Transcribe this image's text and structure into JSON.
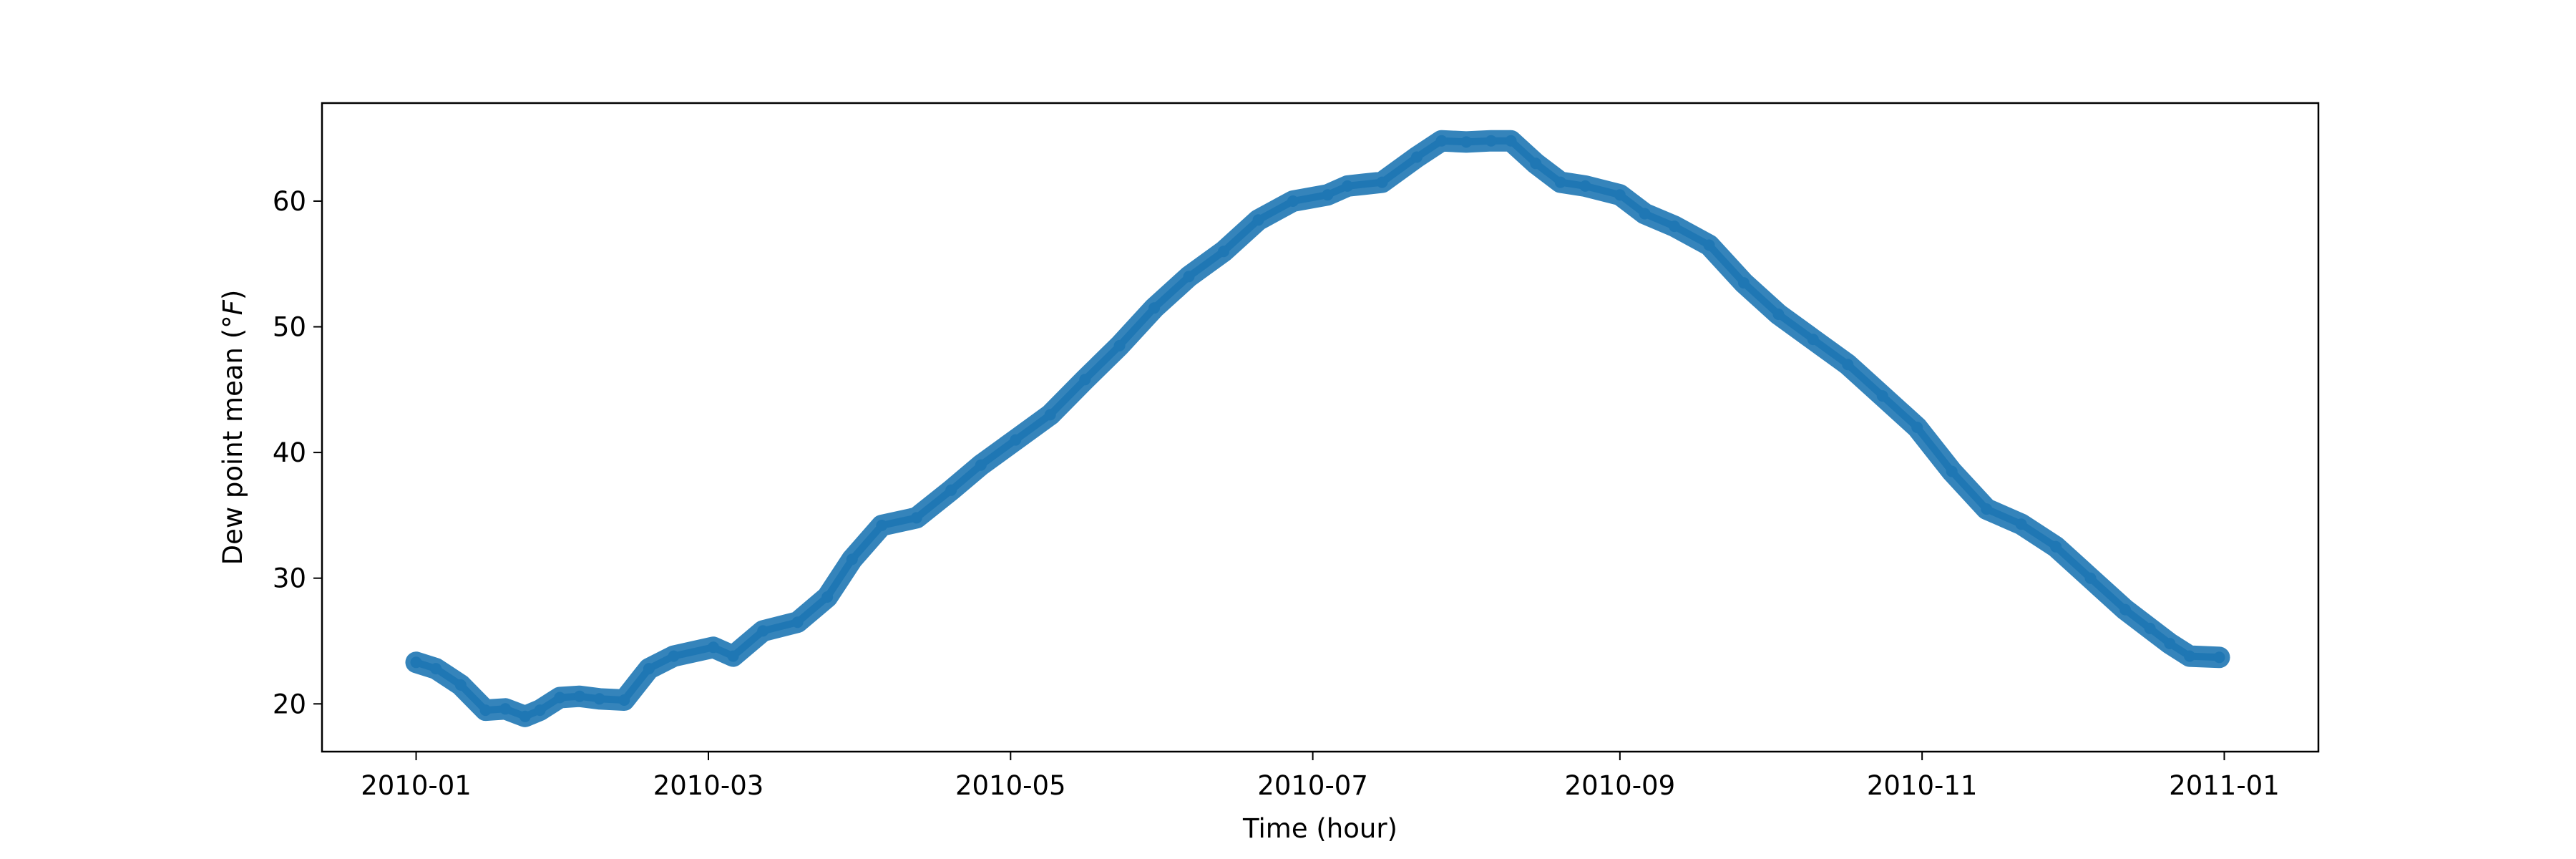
{
  "chart_data": {
    "type": "line",
    "title": "",
    "xlabel": "Time (hour)",
    "ylabel_text": "Dew point mean (",
    "ylabel_unit": "°F",
    "ylabel_close": ")",
    "x_axis_type": "date",
    "xlim": [
      "2009-12-13",
      "2011-01-20"
    ],
    "ylim": [
      16.2,
      67.8
    ],
    "grid": false,
    "legend": "none",
    "color": "#1f77b4",
    "x_ticks": [
      {
        "date": "2010-01-01",
        "label": "2010-01"
      },
      {
        "date": "2010-03-01",
        "label": "2010-03"
      },
      {
        "date": "2010-05-01",
        "label": "2010-05"
      },
      {
        "date": "2010-07-01",
        "label": "2010-07"
      },
      {
        "date": "2010-09-01",
        "label": "2010-09"
      },
      {
        "date": "2010-11-01",
        "label": "2010-11"
      },
      {
        "date": "2011-01-01",
        "label": "2011-01"
      }
    ],
    "y_ticks": [
      {
        "value": 20,
        "label": "20"
      },
      {
        "value": 30,
        "label": "30"
      },
      {
        "value": 40,
        "label": "40"
      },
      {
        "value": 50,
        "label": "50"
      },
      {
        "value": 60,
        "label": "60"
      }
    ],
    "series": [
      {
        "x": [
          "2010-01-01",
          "2010-01-05",
          "2010-01-10",
          "2010-01-15",
          "2010-01-19",
          "2010-01-23",
          "2010-01-26",
          "2010-01-30",
          "2010-02-03",
          "2010-02-07",
          "2010-02-12",
          "2010-02-17",
          "2010-02-22",
          "2010-03-02",
          "2010-03-06",
          "2010-03-12",
          "2010-03-19",
          "2010-03-25",
          "2010-03-30",
          "2010-04-05",
          "2010-04-12",
          "2010-04-19",
          "2010-04-25",
          "2010-05-02",
          "2010-05-09",
          "2010-05-16",
          "2010-05-23",
          "2010-05-30",
          "2010-06-06",
          "2010-06-13",
          "2010-06-20",
          "2010-06-27",
          "2010-07-04",
          "2010-07-08",
          "2010-07-15",
          "2010-07-22",
          "2010-07-27",
          "2010-08-01",
          "2010-08-06",
          "2010-08-10",
          "2010-08-15",
          "2010-08-20",
          "2010-08-25",
          "2010-09-01",
          "2010-09-06",
          "2010-09-12",
          "2010-09-19",
          "2010-09-26",
          "2010-10-03",
          "2010-10-10",
          "2010-10-17",
          "2010-10-24",
          "2010-10-31",
          "2010-11-07",
          "2010-11-14",
          "2010-11-21",
          "2010-11-28",
          "2010-12-05",
          "2010-12-12",
          "2010-12-17",
          "2010-12-21",
          "2010-12-25",
          "2010-12-31"
        ],
        "values": [
          23.3,
          22.8,
          21.5,
          19.5,
          19.6,
          19.0,
          19.5,
          20.5,
          20.6,
          20.4,
          20.3,
          22.8,
          23.8,
          24.5,
          23.8,
          25.8,
          26.5,
          28.5,
          31.5,
          34.2,
          34.8,
          37.0,
          39.0,
          41.0,
          43.0,
          45.8,
          48.5,
          51.5,
          54.0,
          56.0,
          58.5,
          60.0,
          60.5,
          61.2,
          61.5,
          63.5,
          64.8,
          64.7,
          64.8,
          64.8,
          63.0,
          61.5,
          61.2,
          60.5,
          59.0,
          58.0,
          56.5,
          53.5,
          51.0,
          49.0,
          47.0,
          44.5,
          42.0,
          38.5,
          35.5,
          34.3,
          32.5,
          30.0,
          27.5,
          26.0,
          24.8,
          23.8,
          23.7
        ]
      }
    ]
  }
}
